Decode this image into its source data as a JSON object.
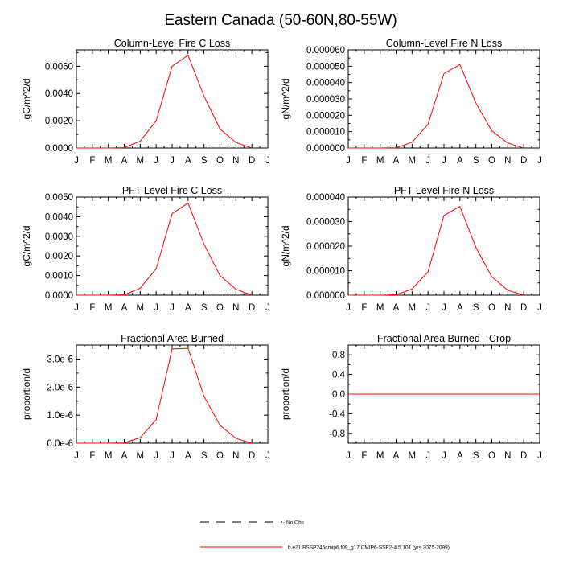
{
  "figure_title": "Eastern Canada (50-60N,80-55W)",
  "months": [
    "J",
    "F",
    "M",
    "A",
    "M",
    "J",
    "J",
    "A",
    "S",
    "O",
    "N",
    "D",
    "J"
  ],
  "chart_data": [
    {
      "type": "line",
      "title": "Column-Level Fire C Loss",
      "ylabel": "gC/m^2/d",
      "ylim": [
        0,
        0.0072
      ],
      "yticks": [
        0,
        0.002,
        0.004,
        0.006
      ],
      "ytick_labels": [
        "0.0000",
        "0.0020",
        "0.0040",
        "0.0060"
      ],
      "x": [
        1,
        2,
        3,
        4,
        5,
        6,
        7,
        8,
        9,
        10,
        11,
        12
      ],
      "series": [
        {
          "name": "b.e21.BSSP245cmip6.f09_g17.CMIP6-SSP2-4.5.101 (yrs 2075-2099)",
          "color": "#ff0000",
          "values": [
            0,
            0,
            0,
            3e-05,
            0.0005,
            0.002,
            0.006,
            0.0068,
            0.0038,
            0.0014,
            0.0004,
            0
          ]
        }
      ]
    },
    {
      "type": "line",
      "title": "Column-Level Fire N Loss",
      "ylabel": "gN/m^2/d",
      "ylim": [
        0,
        6e-05
      ],
      "yticks": [
        0,
        1e-05,
        2e-05,
        3e-05,
        4e-05,
        5e-05,
        6e-05
      ],
      "ytick_labels": [
        "0.000000",
        "0.000010",
        "0.000020",
        "0.000030",
        "0.000040",
        "0.000050",
        "0.000060"
      ],
      "x": [
        1,
        2,
        3,
        4,
        5,
        6,
        7,
        8,
        9,
        10,
        11,
        12
      ],
      "series": [
        {
          "name": "b.e21.BSSP245cmip6.f09_g17.CMIP6-SSP2-4.5.101 (yrs 2075-2099)",
          "color": "#ff0000",
          "values": [
            0,
            0,
            0,
            2e-07,
            3.5e-06,
            1.45e-05,
            4.55e-05,
            5.1e-05,
            2.75e-05,
            1.05e-05,
            3e-06,
            0
          ]
        }
      ]
    },
    {
      "type": "line",
      "title": "PFT-Level Fire C Loss",
      "ylabel": "gC/m^2/d",
      "ylim": [
        0,
        0.005
      ],
      "yticks": [
        0,
        0.001,
        0.002,
        0.003,
        0.004,
        0.005
      ],
      "ytick_labels": [
        "0.0000",
        "0.0010",
        "0.0020",
        "0.0030",
        "0.0040",
        "0.0050"
      ],
      "x": [
        1,
        2,
        3,
        4,
        5,
        6,
        7,
        8,
        9,
        10,
        11,
        12
      ],
      "series": [
        {
          "name": "b.e21.BSSP245cmip6.f09_g17.CMIP6-SSP2-4.5.101 (yrs 2075-2099)",
          "color": "#ff0000",
          "values": [
            0,
            0,
            0,
            2e-05,
            0.00035,
            0.00135,
            0.00415,
            0.0047,
            0.0026,
            0.001,
            0.0003,
            0
          ]
        }
      ]
    },
    {
      "type": "line",
      "title": "PFT-Level Fire N Loss",
      "ylabel": "gN/m^2/d",
      "ylim": [
        0,
        4e-05
      ],
      "yticks": [
        0,
        1e-05,
        2e-05,
        3e-05,
        4e-05
      ],
      "ytick_labels": [
        "0.000000",
        "0.000010",
        "0.000020",
        "0.000030",
        "0.000040"
      ],
      "x": [
        1,
        2,
        3,
        4,
        5,
        6,
        7,
        8,
        9,
        10,
        11,
        12
      ],
      "series": [
        {
          "name": "b.e21.BSSP245cmip6.f09_g17.CMIP6-SSP2-4.5.101 (yrs 2075-2099)",
          "color": "#ff0000",
          "values": [
            0,
            0,
            0,
            2e-07,
            2.5e-06,
            9.5e-06,
            3.25e-05,
            3.62e-05,
            1.95e-05,
            7.5e-06,
            2e-06,
            0
          ]
        }
      ]
    },
    {
      "type": "line",
      "title": "Fractional Area Burned",
      "ylabel": "proportion/d",
      "ylim": [
        0,
        3.5e-06
      ],
      "yticks": [
        0,
        1e-06,
        2e-06,
        3e-06
      ],
      "ytick_labels": [
        "0.0e-6",
        "1.0e-6",
        "2.0e-6",
        "3.0e-6"
      ],
      "x": [
        1,
        2,
        3,
        4,
        5,
        6,
        7,
        8,
        9,
        10,
        11,
        12
      ],
      "series": [
        {
          "name": "b.e21.BSSP245cmip6.f09_g17.CMIP6-SSP2-4.5.101 (yrs 2075-2099)",
          "color": "#ff0000",
          "values": [
            0,
            0,
            0,
            1e-08,
            2e-07,
            8.4e-07,
            3.36e-06,
            3.38e-06,
            1.67e-06,
            6.4e-07,
            1.7e-07,
            0
          ]
        }
      ]
    },
    {
      "type": "line",
      "title": "Fractional Area Burned - Crop",
      "ylabel": "proportion/d",
      "ylim": [
        -1,
        1
      ],
      "yticks": [
        -0.8,
        -0.4,
        0,
        0.4,
        0.8
      ],
      "ytick_labels": [
        "-0.8",
        "-0.4",
        "0.0",
        "0.4",
        "0.8"
      ],
      "x": [
        1,
        2,
        3,
        4,
        5,
        6,
        7,
        8,
        9,
        10,
        11,
        12,
        13
      ],
      "series": [
        {
          "name": "b.e21.BSSP245cmip6.f09_g17.CMIP6-SSP2-4.5.101 (yrs 2075-2099)",
          "color": "#ff0000",
          "values": [
            0,
            0,
            0,
            0,
            0,
            0,
            0,
            0,
            0,
            0,
            0,
            0,
            0
          ]
        }
      ]
    }
  ],
  "legend": [
    {
      "label": "- No Obs",
      "style": "dashed",
      "color": "#000000"
    },
    {
      "label": "b.e21.BSSP245cmip6.f09_g17.CMIP6-SSP2-4.5.101 (yrs 2075-2099)",
      "style": "solid",
      "color": "#ff0000"
    }
  ]
}
